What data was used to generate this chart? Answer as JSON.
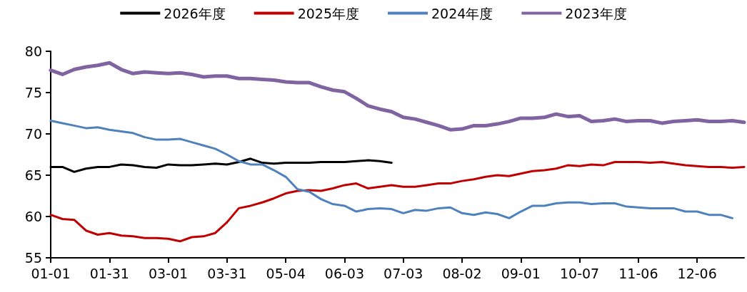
{
  "chart_data": {
    "type": "line",
    "categories": [
      "01-01",
      null,
      null,
      null,
      null,
      "01-31",
      null,
      null,
      null,
      null,
      "03-01",
      null,
      null,
      null,
      null,
      "03-31",
      null,
      null,
      null,
      null,
      "05-04",
      null,
      null,
      null,
      null,
      "06-03",
      null,
      null,
      null,
      null,
      "07-03",
      null,
      null,
      null,
      null,
      "08-02",
      null,
      null,
      null,
      null,
      "09-01",
      null,
      null,
      null,
      null,
      "10-07",
      null,
      null,
      null,
      null,
      "11-06",
      null,
      null,
      null,
      null,
      "12-06",
      null,
      null,
      null,
      null
    ],
    "series": [
      {
        "name": "2026年度",
        "color": "#000000",
        "values": [
          66.0,
          66.0,
          65.4,
          65.8,
          66.0,
          66.0,
          66.3,
          66.2,
          66.0,
          65.9,
          66.3,
          66.2,
          66.2,
          66.3,
          66.4,
          66.3,
          66.6,
          67.0,
          66.5,
          66.4,
          66.5,
          66.5,
          66.5,
          66.6,
          66.6,
          66.6,
          66.7,
          66.8,
          66.7,
          66.5,
          null,
          null,
          null,
          null,
          null,
          null,
          null,
          null,
          null,
          null,
          null,
          null,
          null,
          null,
          null,
          null,
          null,
          null,
          null,
          null,
          null,
          null,
          null,
          null,
          null,
          null,
          null,
          null,
          null,
          null
        ]
      },
      {
        "name": "2025年度",
        "color": "#c00000",
        "values": [
          60.2,
          59.7,
          59.6,
          58.3,
          57.8,
          58.0,
          57.7,
          57.6,
          57.4,
          57.4,
          57.3,
          57.0,
          57.5,
          57.6,
          58.0,
          59.3,
          61.0,
          61.3,
          61.7,
          62.2,
          62.8,
          63.1,
          63.2,
          63.1,
          63.4,
          63.8,
          64.0,
          63.4,
          63.6,
          63.8,
          63.6,
          63.6,
          63.8,
          64.0,
          64.0,
          64.3,
          64.5,
          64.8,
          65.0,
          64.9,
          65.2,
          65.5,
          65.6,
          65.8,
          66.2,
          66.1,
          66.3,
          66.2,
          66.6,
          66.6,
          66.6,
          66.5,
          66.6,
          66.4,
          66.2,
          66.1,
          66.0,
          66.0,
          65.9,
          66.0
        ]
      },
      {
        "name": "2024年度",
        "color": "#4f81bd",
        "values": [
          71.6,
          71.3,
          71.0,
          70.7,
          70.8,
          70.5,
          70.3,
          70.1,
          69.6,
          69.3,
          69.3,
          69.4,
          69.0,
          68.6,
          68.2,
          67.5,
          66.7,
          66.3,
          66.3,
          65.6,
          64.8,
          63.3,
          63.0,
          62.1,
          61.5,
          61.3,
          60.6,
          60.9,
          61.0,
          60.9,
          60.4,
          60.8,
          60.7,
          61.0,
          61.1,
          60.4,
          60.2,
          60.5,
          60.3,
          59.8,
          60.6,
          61.3,
          61.3,
          61.6,
          61.7,
          61.7,
          61.5,
          61.6,
          61.6,
          61.2,
          61.1,
          61.0,
          61.0,
          61.0,
          60.6,
          60.6,
          60.2,
          60.2,
          59.8,
          null
        ]
      },
      {
        "name": "2023年度",
        "color": "#8064a2",
        "values": [
          77.7,
          77.2,
          77.8,
          78.1,
          78.3,
          78.6,
          77.8,
          77.3,
          77.5,
          77.4,
          77.3,
          77.4,
          77.2,
          76.9,
          77.0,
          77.0,
          76.7,
          76.7,
          76.6,
          76.5,
          76.3,
          76.2,
          76.2,
          75.7,
          75.3,
          75.1,
          74.3,
          73.4,
          73.0,
          72.7,
          72.0,
          71.8,
          71.4,
          71.0,
          70.5,
          70.6,
          71.0,
          71.0,
          71.2,
          71.5,
          71.9,
          71.9,
          72.0,
          72.4,
          72.1,
          72.2,
          71.5,
          71.6,
          71.8,
          71.5,
          71.6,
          71.6,
          71.3,
          71.5,
          71.6,
          71.7,
          71.5,
          71.5,
          71.6,
          71.4
        ]
      }
    ],
    "ylim": [
      55,
      80
    ],
    "yticks": [
      55,
      60,
      65,
      70,
      75,
      80
    ],
    "grid": false,
    "legend": "top",
    "marker": "none",
    "line_style": "solid"
  }
}
